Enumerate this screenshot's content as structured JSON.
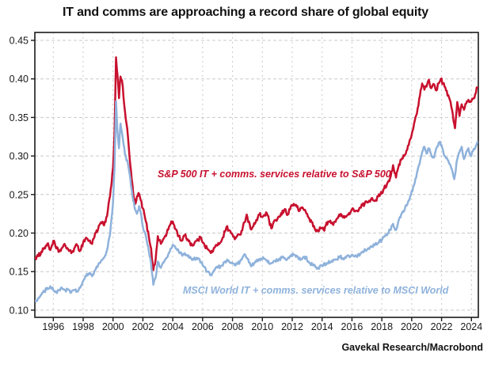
{
  "title": "IT and comms are approaching a record share of global equity",
  "source": "Gavekal Research/Macrobond",
  "colors": {
    "sp500_line": "#C8102E",
    "msci_line": "#8FB2DB",
    "grid": "#C9C9C9",
    "axis": "#1A1A1A",
    "tick_text": "#1A1A1A"
  },
  "chart_data": {
    "type": "line",
    "title": "IT and comms are approaching a record share of global equity",
    "xlabel": "",
    "ylabel": "",
    "grid": "dashed",
    "legend_position": "labels-inside-plot",
    "x_axis": {
      "min": 1994.8,
      "max": 2024.45,
      "tick_years": [
        1996,
        1998,
        2000,
        2002,
        2004,
        2006,
        2008,
        2010,
        2012,
        2014,
        2016,
        2018,
        2020,
        2022,
        2024
      ],
      "tick_labels": [
        "1996",
        "1998",
        "2000",
        "2002",
        "2004",
        "2006",
        "2008",
        "2010",
        "2012",
        "2014",
        "2016",
        "2018",
        "2020",
        "2022",
        "2024"
      ]
    },
    "y_axis": {
      "min": 0.1,
      "max": 0.45,
      "ticks": [
        0.45,
        0.4,
        0.35,
        0.3,
        0.25,
        0.2,
        0.15,
        0.1
      ],
      "tick_labels": [
        "0.45",
        "0.40",
        "0.35",
        "0.30",
        "0.25",
        "0.20",
        "0.15",
        "0.10"
      ]
    },
    "series": [
      {
        "name": "S&P 500 IT + comms. services relative to S&P 500",
        "color": "#C8102E",
        "noise": 0.0028,
        "points": [
          [
            1994.8,
            0.168
          ],
          [
            1995.0,
            0.17
          ],
          [
            1995.2,
            0.176
          ],
          [
            1995.4,
            0.181
          ],
          [
            1995.6,
            0.186
          ],
          [
            1995.8,
            0.178
          ],
          [
            1996.0,
            0.19
          ],
          [
            1996.2,
            0.18
          ],
          [
            1996.4,
            0.176
          ],
          [
            1996.6,
            0.181
          ],
          [
            1996.8,
            0.184
          ],
          [
            1997.0,
            0.179
          ],
          [
            1997.2,
            0.174
          ],
          [
            1997.4,
            0.18
          ],
          [
            1997.6,
            0.184
          ],
          [
            1997.8,
            0.177
          ],
          [
            1998.0,
            0.188
          ],
          [
            1998.2,
            0.194
          ],
          [
            1998.4,
            0.19
          ],
          [
            1998.6,
            0.186
          ],
          [
            1998.8,
            0.2
          ],
          [
            1999.0,
            0.205
          ],
          [
            1999.2,
            0.214
          ],
          [
            1999.4,
            0.21
          ],
          [
            1999.6,
            0.222
          ],
          [
            1999.8,
            0.248
          ],
          [
            2000.0,
            0.285
          ],
          [
            2000.1,
            0.33
          ],
          [
            2000.2,
            0.428
          ],
          [
            2000.3,
            0.405
          ],
          [
            2000.4,
            0.375
          ],
          [
            2000.5,
            0.403
          ],
          [
            2000.6,
            0.398
          ],
          [
            2000.8,
            0.358
          ],
          [
            2001.0,
            0.325
          ],
          [
            2001.1,
            0.3
          ],
          [
            2001.25,
            0.27
          ],
          [
            2001.4,
            0.245
          ],
          [
            2001.5,
            0.238
          ],
          [
            2001.7,
            0.252
          ],
          [
            2001.85,
            0.243
          ],
          [
            2002.0,
            0.232
          ],
          [
            2002.2,
            0.215
          ],
          [
            2002.4,
            0.195
          ],
          [
            2002.55,
            0.18
          ],
          [
            2002.7,
            0.152
          ],
          [
            2002.85,
            0.165
          ],
          [
            2003.0,
            0.196
          ],
          [
            2003.2,
            0.186
          ],
          [
            2003.4,
            0.193
          ],
          [
            2003.6,
            0.2
          ],
          [
            2003.8,
            0.21
          ],
          [
            2004.0,
            0.215
          ],
          [
            2004.2,
            0.205
          ],
          [
            2004.4,
            0.196
          ],
          [
            2004.6,
            0.19
          ],
          [
            2004.8,
            0.197
          ],
          [
            2005.0,
            0.192
          ],
          [
            2005.3,
            0.184
          ],
          [
            2005.6,
            0.19
          ],
          [
            2005.9,
            0.194
          ],
          [
            2006.1,
            0.186
          ],
          [
            2006.3,
            0.18
          ],
          [
            2006.55,
            0.174
          ],
          [
            2006.8,
            0.181
          ],
          [
            2007.0,
            0.184
          ],
          [
            2007.3,
            0.192
          ],
          [
            2007.6,
            0.208
          ],
          [
            2007.9,
            0.2
          ],
          [
            2008.2,
            0.193
          ],
          [
            2008.5,
            0.198
          ],
          [
            2008.8,
            0.214
          ],
          [
            2008.95,
            0.224
          ],
          [
            2009.2,
            0.206
          ],
          [
            2009.5,
            0.212
          ],
          [
            2009.8,
            0.224
          ],
          [
            2010.0,
            0.221
          ],
          [
            2010.3,
            0.226
          ],
          [
            2010.6,
            0.206
          ],
          [
            2010.9,
            0.217
          ],
          [
            2011.2,
            0.222
          ],
          [
            2011.5,
            0.231
          ],
          [
            2011.7,
            0.224
          ],
          [
            2011.9,
            0.234
          ],
          [
            2012.1,
            0.238
          ],
          [
            2012.3,
            0.234
          ],
          [
            2012.5,
            0.229
          ],
          [
            2012.7,
            0.233
          ],
          [
            2012.9,
            0.228
          ],
          [
            2013.1,
            0.22
          ],
          [
            2013.3,
            0.214
          ],
          [
            2013.6,
            0.202
          ],
          [
            2013.9,
            0.207
          ],
          [
            2014.1,
            0.204
          ],
          [
            2014.4,
            0.215
          ],
          [
            2014.7,
            0.212
          ],
          [
            2015.0,
            0.219
          ],
          [
            2015.3,
            0.224
          ],
          [
            2015.6,
            0.221
          ],
          [
            2015.9,
            0.227
          ],
          [
            2016.1,
            0.231
          ],
          [
            2016.4,
            0.228
          ],
          [
            2016.7,
            0.236
          ],
          [
            2017.0,
            0.24
          ],
          [
            2017.3,
            0.245
          ],
          [
            2017.6,
            0.243
          ],
          [
            2017.9,
            0.25
          ],
          [
            2018.1,
            0.256
          ],
          [
            2018.35,
            0.264
          ],
          [
            2018.6,
            0.274
          ],
          [
            2018.75,
            0.288
          ],
          [
            2018.95,
            0.272
          ],
          [
            2019.1,
            0.285
          ],
          [
            2019.3,
            0.295
          ],
          [
            2019.5,
            0.3
          ],
          [
            2019.7,
            0.308
          ],
          [
            2019.9,
            0.322
          ],
          [
            2020.1,
            0.335
          ],
          [
            2020.25,
            0.35
          ],
          [
            2020.4,
            0.362
          ],
          [
            2020.55,
            0.378
          ],
          [
            2020.7,
            0.394
          ],
          [
            2020.85,
            0.386
          ],
          [
            2021.0,
            0.39
          ],
          [
            2021.15,
            0.399
          ],
          [
            2021.3,
            0.388
          ],
          [
            2021.5,
            0.393
          ],
          [
            2021.65,
            0.385
          ],
          [
            2021.8,
            0.394
          ],
          [
            2021.95,
            0.4
          ],
          [
            2022.1,
            0.394
          ],
          [
            2022.3,
            0.385
          ],
          [
            2022.5,
            0.376
          ],
          [
            2022.7,
            0.36
          ],
          [
            2022.9,
            0.336
          ],
          [
            2023.05,
            0.37
          ],
          [
            2023.2,
            0.352
          ],
          [
            2023.35,
            0.367
          ],
          [
            2023.5,
            0.36
          ],
          [
            2023.65,
            0.368
          ],
          [
            2023.8,
            0.373
          ],
          [
            2023.95,
            0.37
          ],
          [
            2024.1,
            0.374
          ],
          [
            2024.25,
            0.38
          ],
          [
            2024.4,
            0.389
          ]
        ]
      },
      {
        "name": "MSCI World IT + comms. services relative to MSCI World",
        "color": "#8FB2DB",
        "noise": 0.0022,
        "points": [
          [
            1994.8,
            0.112
          ],
          [
            1995.0,
            0.115
          ],
          [
            1995.2,
            0.12
          ],
          [
            1995.4,
            0.124
          ],
          [
            1995.6,
            0.129
          ],
          [
            1995.8,
            0.131
          ],
          [
            1996.0,
            0.126
          ],
          [
            1996.2,
            0.123
          ],
          [
            1996.4,
            0.126
          ],
          [
            1996.6,
            0.128
          ],
          [
            1996.8,
            0.126
          ],
          [
            1997.0,
            0.127
          ],
          [
            1997.2,
            0.123
          ],
          [
            1997.4,
            0.126
          ],
          [
            1997.6,
            0.124
          ],
          [
            1997.8,
            0.129
          ],
          [
            1998.0,
            0.138
          ],
          [
            1998.2,
            0.144
          ],
          [
            1998.4,
            0.148
          ],
          [
            1998.6,
            0.144
          ],
          [
            1998.8,
            0.152
          ],
          [
            1999.0,
            0.158
          ],
          [
            1999.2,
            0.164
          ],
          [
            1999.4,
            0.168
          ],
          [
            1999.6,
            0.178
          ],
          [
            1999.8,
            0.198
          ],
          [
            2000.0,
            0.24
          ],
          [
            2000.1,
            0.285
          ],
          [
            2000.2,
            0.371
          ],
          [
            2000.3,
            0.33
          ],
          [
            2000.4,
            0.31
          ],
          [
            2000.5,
            0.342
          ],
          [
            2000.6,
            0.33
          ],
          [
            2000.8,
            0.302
          ],
          [
            2001.0,
            0.29
          ],
          [
            2001.15,
            0.272
          ],
          [
            2001.3,
            0.248
          ],
          [
            2001.45,
            0.232
          ],
          [
            2001.6,
            0.225
          ],
          [
            2001.75,
            0.235
          ],
          [
            2001.9,
            0.222
          ],
          [
            2002.0,
            0.208
          ],
          [
            2002.2,
            0.196
          ],
          [
            2002.4,
            0.176
          ],
          [
            2002.55,
            0.16
          ],
          [
            2002.7,
            0.133
          ],
          [
            2002.85,
            0.142
          ],
          [
            2003.0,
            0.163
          ],
          [
            2003.2,
            0.155
          ],
          [
            2003.4,
            0.162
          ],
          [
            2003.6,
            0.168
          ],
          [
            2003.8,
            0.176
          ],
          [
            2004.0,
            0.185
          ],
          [
            2004.2,
            0.18
          ],
          [
            2004.4,
            0.176
          ],
          [
            2004.6,
            0.172
          ],
          [
            2004.8,
            0.174
          ],
          [
            2005.0,
            0.17
          ],
          [
            2005.3,
            0.165
          ],
          [
            2005.6,
            0.168
          ],
          [
            2005.9,
            0.162
          ],
          [
            2006.1,
            0.156
          ],
          [
            2006.3,
            0.15
          ],
          [
            2006.55,
            0.146
          ],
          [
            2006.8,
            0.152
          ],
          [
            2007.0,
            0.155
          ],
          [
            2007.3,
            0.158
          ],
          [
            2007.6,
            0.164
          ],
          [
            2007.9,
            0.161
          ],
          [
            2008.2,
            0.158
          ],
          [
            2008.5,
            0.163
          ],
          [
            2008.85,
            0.172
          ],
          [
            2009.1,
            0.162
          ],
          [
            2009.3,
            0.158
          ],
          [
            2009.6,
            0.163
          ],
          [
            2009.9,
            0.167
          ],
          [
            2010.2,
            0.166
          ],
          [
            2010.5,
            0.16
          ],
          [
            2010.8,
            0.164
          ],
          [
            2011.1,
            0.166
          ],
          [
            2011.4,
            0.169
          ],
          [
            2011.6,
            0.165
          ],
          [
            2011.9,
            0.17
          ],
          [
            2012.1,
            0.172
          ],
          [
            2012.4,
            0.168
          ],
          [
            2012.6,
            0.166
          ],
          [
            2012.9,
            0.169
          ],
          [
            2013.1,
            0.163
          ],
          [
            2013.4,
            0.158
          ],
          [
            2013.7,
            0.155
          ],
          [
            2014.0,
            0.157
          ],
          [
            2014.3,
            0.161
          ],
          [
            2014.6,
            0.163
          ],
          [
            2014.9,
            0.166
          ],
          [
            2015.2,
            0.169
          ],
          [
            2015.5,
            0.167
          ],
          [
            2015.8,
            0.17
          ],
          [
            2016.0,
            0.172
          ],
          [
            2016.3,
            0.17
          ],
          [
            2016.6,
            0.174
          ],
          [
            2016.9,
            0.178
          ],
          [
            2017.2,
            0.181
          ],
          [
            2017.5,
            0.184
          ],
          [
            2017.8,
            0.188
          ],
          [
            2018.0,
            0.191
          ],
          [
            2018.3,
            0.197
          ],
          [
            2018.55,
            0.204
          ],
          [
            2018.75,
            0.212
          ],
          [
            2018.95,
            0.204
          ],
          [
            2019.15,
            0.218
          ],
          [
            2019.35,
            0.226
          ],
          [
            2019.55,
            0.232
          ],
          [
            2019.75,
            0.24
          ],
          [
            2019.95,
            0.25
          ],
          [
            2020.15,
            0.262
          ],
          [
            2020.35,
            0.278
          ],
          [
            2020.55,
            0.292
          ],
          [
            2020.7,
            0.305
          ],
          [
            2020.85,
            0.312
          ],
          [
            2021.0,
            0.303
          ],
          [
            2021.15,
            0.31
          ],
          [
            2021.3,
            0.302
          ],
          [
            2021.5,
            0.298
          ],
          [
            2021.7,
            0.312
          ],
          [
            2021.85,
            0.318
          ],
          [
            2022.0,
            0.314
          ],
          [
            2022.2,
            0.3
          ],
          [
            2022.4,
            0.295
          ],
          [
            2022.6,
            0.288
          ],
          [
            2022.85,
            0.27
          ],
          [
            2023.05,
            0.296
          ],
          [
            2023.2,
            0.305
          ],
          [
            2023.35,
            0.312
          ],
          [
            2023.5,
            0.296
          ],
          [
            2023.65,
            0.305
          ],
          [
            2023.8,
            0.31
          ],
          [
            2023.95,
            0.3
          ],
          [
            2024.1,
            0.306
          ],
          [
            2024.25,
            0.31
          ],
          [
            2024.4,
            0.318
          ]
        ]
      }
    ]
  }
}
